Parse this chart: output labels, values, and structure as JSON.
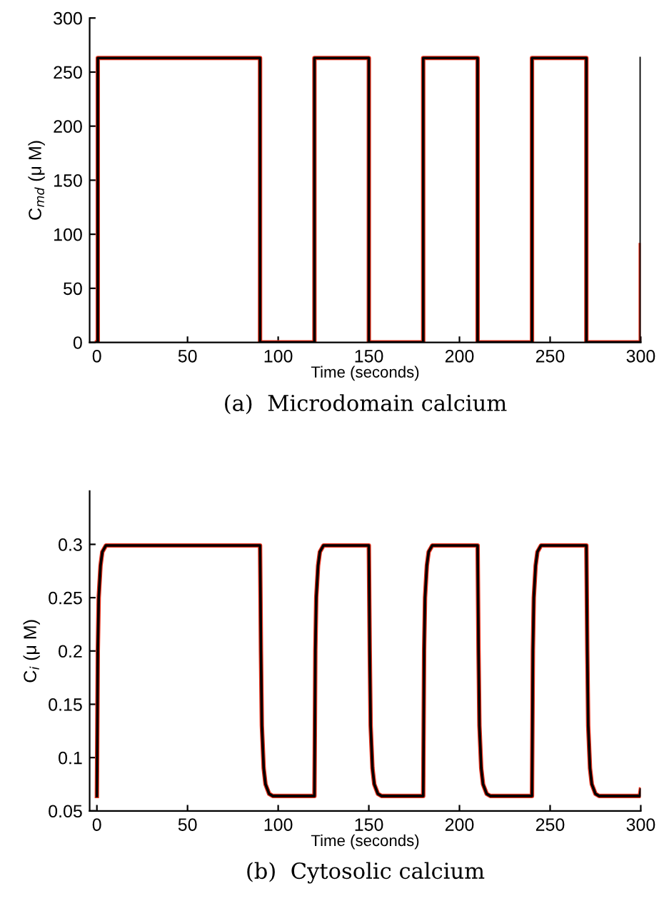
{
  "chart_data": [
    {
      "type": "line",
      "xlabel": "Time (seconds)",
      "ylabel": "C$_{md}$ (μ M)",
      "annotations": [
        "(a)  Microdomain calcium"
      ],
      "xlim": [
        -4,
        300
      ],
      "xticks": [
        0,
        50,
        100,
        150,
        200,
        250,
        300
      ],
      "ylim": [
        0,
        300
      ],
      "yticks": [
        0,
        50,
        100,
        150,
        200,
        250,
        300
      ],
      "grid": false,
      "legend": false,
      "series": [
        {
          "color": "#e8301a",
          "x": [
            0,
            0.5,
            0.5,
            90,
            90,
            120,
            120,
            150,
            150,
            180,
            180,
            210,
            210,
            240,
            240,
            270,
            270,
            300,
            300
          ],
          "values": [
            0,
            0,
            263,
            263,
            0,
            0,
            263,
            263,
            0,
            0,
            263,
            263,
            0,
            0,
            263,
            263,
            0,
            0,
            90
          ]
        },
        {
          "color": "#000000",
          "x": [
            0,
            0.5,
            0.5,
            90,
            90,
            120,
            120,
            150,
            150,
            180,
            180,
            210,
            210,
            240,
            240,
            270,
            270,
            300,
            300
          ],
          "values": [
            0,
            0,
            263,
            263,
            0,
            0,
            263,
            263,
            0,
            0,
            263,
            263,
            0,
            0,
            263,
            263,
            0,
            0,
            263
          ]
        }
      ]
    },
    {
      "type": "line",
      "xlabel": "Time (seconds)",
      "ylabel": "C$_{i}$ (μ M)",
      "annotations": [
        "(b)  Cytosolic calcium"
      ],
      "xlim": [
        -4,
        300
      ],
      "xticks": [
        0,
        50,
        100,
        150,
        200,
        250,
        300
      ],
      "ylim": [
        0.05,
        0.35
      ],
      "yticks": [
        0.05,
        0.1,
        0.15,
        0.2,
        0.25,
        0.3
      ],
      "grid": false,
      "legend": false,
      "series": [
        {
          "color": "#e8301a",
          "x": [
            0,
            0.5,
            1,
            2,
            3,
            5,
            90,
            90.5,
            91,
            92,
            93,
            95,
            97,
            120,
            120.5,
            121,
            122,
            123,
            125,
            150,
            150.5,
            151,
            152,
            153,
            155,
            157,
            180,
            180.5,
            181,
            182,
            183,
            185,
            210,
            210.5,
            211,
            212,
            213,
            215,
            217,
            240,
            240.5,
            241,
            242,
            243,
            245,
            270,
            270.5,
            271,
            272,
            273,
            275,
            277,
            299.5,
            300
          ],
          "values": [
            0.064,
            0.2,
            0.25,
            0.28,
            0.293,
            0.299,
            0.299,
            0.2,
            0.13,
            0.09,
            0.075,
            0.066,
            0.064,
            0.064,
            0.2,
            0.25,
            0.28,
            0.293,
            0.299,
            0.299,
            0.2,
            0.13,
            0.09,
            0.075,
            0.066,
            0.064,
            0.064,
            0.2,
            0.25,
            0.28,
            0.293,
            0.299,
            0.299,
            0.2,
            0.13,
            0.09,
            0.075,
            0.066,
            0.064,
            0.064,
            0.2,
            0.25,
            0.28,
            0.293,
            0.299,
            0.299,
            0.2,
            0.13,
            0.09,
            0.075,
            0.066,
            0.064,
            0.064,
            0.07
          ]
        },
        {
          "color": "#000000",
          "x": [
            0,
            0.5,
            1,
            2,
            3,
            5,
            90,
            90.5,
            91,
            92,
            93,
            95,
            97,
            120,
            120.5,
            121,
            122,
            123,
            125,
            150,
            150.5,
            151,
            152,
            153,
            155,
            157,
            180,
            180.5,
            181,
            182,
            183,
            185,
            210,
            210.5,
            211,
            212,
            213,
            215,
            217,
            240,
            240.5,
            241,
            242,
            243,
            245,
            270,
            270.5,
            271,
            272,
            273,
            275,
            277,
            299.5,
            300
          ],
          "values": [
            0.064,
            0.2,
            0.25,
            0.28,
            0.293,
            0.299,
            0.299,
            0.2,
            0.13,
            0.09,
            0.075,
            0.066,
            0.064,
            0.064,
            0.2,
            0.25,
            0.28,
            0.293,
            0.299,
            0.299,
            0.2,
            0.13,
            0.09,
            0.075,
            0.066,
            0.064,
            0.064,
            0.2,
            0.25,
            0.28,
            0.293,
            0.299,
            0.299,
            0.2,
            0.13,
            0.09,
            0.075,
            0.066,
            0.064,
            0.064,
            0.2,
            0.25,
            0.28,
            0.293,
            0.299,
            0.299,
            0.2,
            0.13,
            0.09,
            0.075,
            0.066,
            0.064,
            0.064,
            0.07
          ]
        }
      ]
    }
  ]
}
